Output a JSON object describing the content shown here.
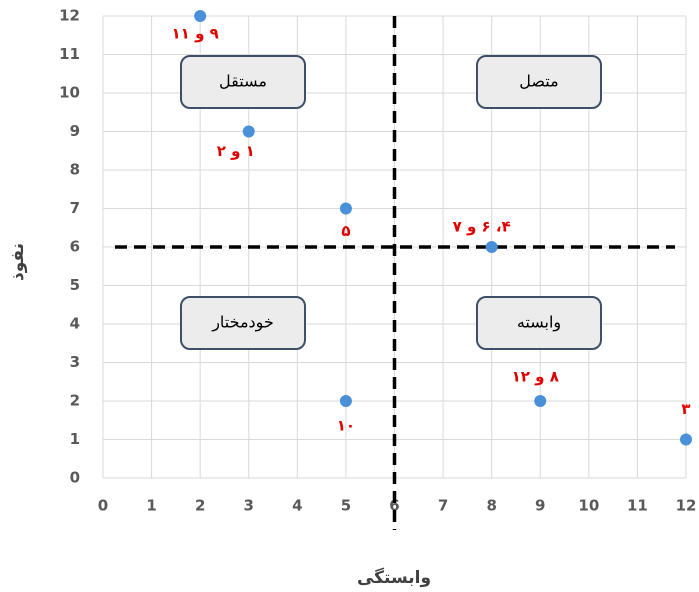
{
  "chart_data": {
    "type": "scatter",
    "x": [
      2,
      3,
      5,
      8,
      5,
      9,
      12
    ],
    "values": [
      12,
      9,
      7,
      6,
      2,
      2,
      1
    ],
    "point_labels": [
      "۹ و ۱۱",
      "۱ و ۲",
      "۵",
      "۴، ۶ و ۷",
      "۱۰",
      "۸ و ۱۲",
      "۳"
    ],
    "color": "#4a90d9",
    "label_color": "#e00000",
    "xlim": [
      0,
      12
    ],
    "xticks": [
      0,
      1,
      2,
      3,
      4,
      5,
      6,
      7,
      8,
      9,
      10,
      11,
      12
    ],
    "ylim": [
      0,
      12
    ],
    "yticks": [
      0,
      1,
      2,
      3,
      4,
      5,
      6,
      7,
      8,
      9,
      10,
      11,
      12
    ],
    "xlabel": "وابستگی",
    "ylabel": "نفوذ",
    "grid": true,
    "reference_lines": {
      "x": 6,
      "y": 6
    },
    "quadrant_labels": [
      "مستقل",
      "متصل",
      "خودمختار",
      "وابسته"
    ]
  }
}
